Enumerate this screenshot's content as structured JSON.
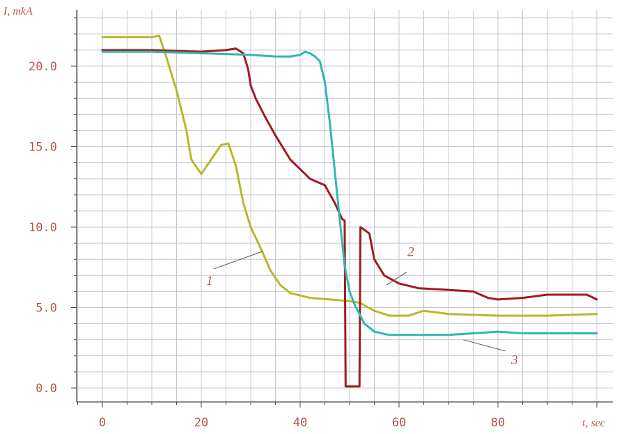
{
  "chart_data": {
    "type": "line",
    "ylabel": "I, mkA",
    "xlabel": "t, sec",
    "xlim": [
      0,
      100
    ],
    "ylim": [
      0,
      23
    ],
    "x_ticks": [
      0,
      20,
      40,
      60,
      80
    ],
    "x_tick_labels": [
      "0",
      "20",
      "40",
      "60",
      "80"
    ],
    "y_ticks": [
      0,
      5,
      10,
      15,
      20
    ],
    "y_tick_labels": [
      "0.0",
      "5.0",
      "10.0",
      "15.0",
      "20.0"
    ],
    "grid": true,
    "colors": {
      "grid": "#c4c4d8",
      "axis": "#444444",
      "text": "#b2574a"
    },
    "series": [
      {
        "name": "1",
        "color": "#b7b82a",
        "x": [
          0,
          5,
          10,
          11.5,
          13,
          15,
          17,
          18,
          20,
          22,
          24,
          25.5,
          27,
          28.5,
          30,
          32,
          34,
          36,
          38,
          42,
          46,
          50,
          52,
          55,
          58,
          62,
          65,
          70,
          80,
          90,
          100
        ],
        "y": [
          21.8,
          21.8,
          21.8,
          21.9,
          20.5,
          18.5,
          16,
          14.2,
          13.3,
          14.2,
          15.1,
          15.2,
          13.8,
          11.5,
          10.0,
          8.7,
          7.3,
          6.4,
          5.9,
          5.6,
          5.5,
          5.4,
          5.3,
          4.8,
          4.5,
          4.5,
          4.8,
          4.6,
          4.5,
          4.5,
          4.6
        ]
      },
      {
        "name": "2",
        "color": "#a11c1c",
        "x": [
          0,
          10,
          20,
          25,
          27,
          28.5,
          29.5,
          30,
          31,
          33,
          35,
          38,
          40,
          42,
          45,
          47,
          48.5,
          49,
          49.2,
          52,
          52.2,
          54,
          55,
          57,
          60,
          64,
          70,
          75,
          78,
          80,
          85,
          90,
          95,
          98,
          100
        ],
        "y": [
          21.0,
          21.0,
          20.9,
          21.0,
          21.1,
          20.8,
          19.8,
          18.8,
          18.0,
          16.8,
          15.7,
          14.2,
          13.6,
          13.0,
          12.6,
          11.5,
          10.5,
          10.4,
          0.1,
          0.1,
          10.0,
          9.6,
          8.0,
          7.0,
          6.5,
          6.2,
          6.1,
          6.0,
          5.6,
          5.5,
          5.6,
          5.8,
          5.8,
          5.8,
          5.5
        ]
      },
      {
        "name": "3",
        "color": "#2fb7b3",
        "x": [
          0,
          10,
          20,
          30,
          35,
          38,
          40,
          41,
          42,
          43,
          44,
          45,
          46,
          47,
          48,
          49,
          50,
          51,
          52,
          53,
          55,
          58,
          60,
          65,
          70,
          75,
          80,
          85,
          90,
          100
        ],
        "y": [
          20.9,
          20.9,
          20.8,
          20.7,
          20.6,
          20.6,
          20.7,
          20.9,
          20.8,
          20.6,
          20.3,
          19.0,
          16.5,
          13.5,
          10.5,
          7.6,
          6.0,
          5.2,
          4.6,
          4.0,
          3.5,
          3.3,
          3.3,
          3.3,
          3.3,
          3.4,
          3.5,
          3.4,
          3.4,
          3.4
        ]
      }
    ],
    "annotations": [
      {
        "text": "1",
        "series": "1"
      },
      {
        "text": "2",
        "series": "2"
      },
      {
        "text": "3",
        "series": "3"
      }
    ]
  }
}
